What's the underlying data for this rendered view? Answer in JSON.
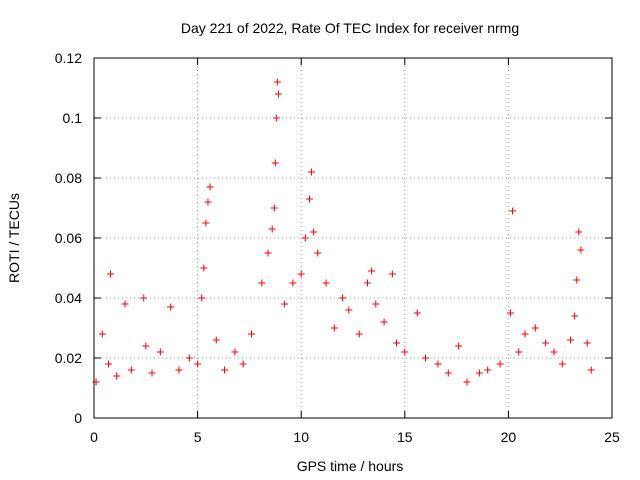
{
  "chart_data": {
    "type": "scatter",
    "title": "Day 221 of 2022, Rate Of TEC Index for receiver nrmg",
    "xlabel": "GPS time / hours",
    "ylabel": "ROTI / TECUs",
    "xlim": [
      0,
      25
    ],
    "ylim": [
      0,
      0.12
    ],
    "x_ticks": [
      "0",
      "5",
      "10",
      "15",
      "20",
      "25"
    ],
    "y_ticks": [
      "0",
      "0.02",
      "0.04",
      "0.06",
      "0.08",
      "0.1",
      "0.12"
    ],
    "grid": true,
    "marker": "+",
    "color": "#ff0000",
    "series": [
      {
        "x": [
          0.1,
          0.4,
          0.7,
          0.8,
          1.1,
          1.5,
          1.8,
          2.4,
          2.5,
          2.8,
          3.2,
          3.7,
          4.1,
          4.6,
          5.0,
          5.2,
          5.3,
          5.4,
          5.5,
          5.6,
          5.9,
          6.3,
          6.8,
          7.2,
          7.6,
          8.1,
          8.4,
          8.6,
          8.7,
          8.75,
          8.8,
          8.85,
          8.9,
          9.2,
          9.6,
          10.0,
          10.2,
          10.4,
          10.5,
          10.6,
          10.8,
          11.2,
          11.6,
          12.0,
          12.3,
          12.8,
          13.2,
          13.4,
          13.6,
          14.0,
          14.4,
          14.6,
          15.0,
          15.6,
          16.0,
          16.6,
          17.1,
          17.6,
          18.0,
          18.6,
          19.0,
          19.6,
          20.1,
          20.2,
          20.5,
          20.8,
          21.3,
          21.8,
          22.2,
          22.6,
          23.0,
          23.2,
          23.3,
          23.4,
          23.5,
          23.8,
          24.0
        ],
        "y": [
          0.012,
          0.028,
          0.018,
          0.048,
          0.014,
          0.038,
          0.016,
          0.04,
          0.024,
          0.015,
          0.022,
          0.037,
          0.016,
          0.02,
          0.018,
          0.04,
          0.05,
          0.065,
          0.072,
          0.077,
          0.026,
          0.016,
          0.022,
          0.018,
          0.028,
          0.045,
          0.055,
          0.063,
          0.07,
          0.085,
          0.1,
          0.112,
          0.108,
          0.038,
          0.045,
          0.048,
          0.06,
          0.073,
          0.082,
          0.062,
          0.055,
          0.045,
          0.03,
          0.04,
          0.036,
          0.028,
          0.045,
          0.049,
          0.038,
          0.032,
          0.048,
          0.025,
          0.022,
          0.035,
          0.02,
          0.018,
          0.015,
          0.024,
          0.012,
          0.015,
          0.016,
          0.018,
          0.035,
          0.069,
          0.022,
          0.028,
          0.03,
          0.025,
          0.022,
          0.018,
          0.026,
          0.034,
          0.046,
          0.062,
          0.056,
          0.025,
          0.016
        ]
      }
    ]
  }
}
